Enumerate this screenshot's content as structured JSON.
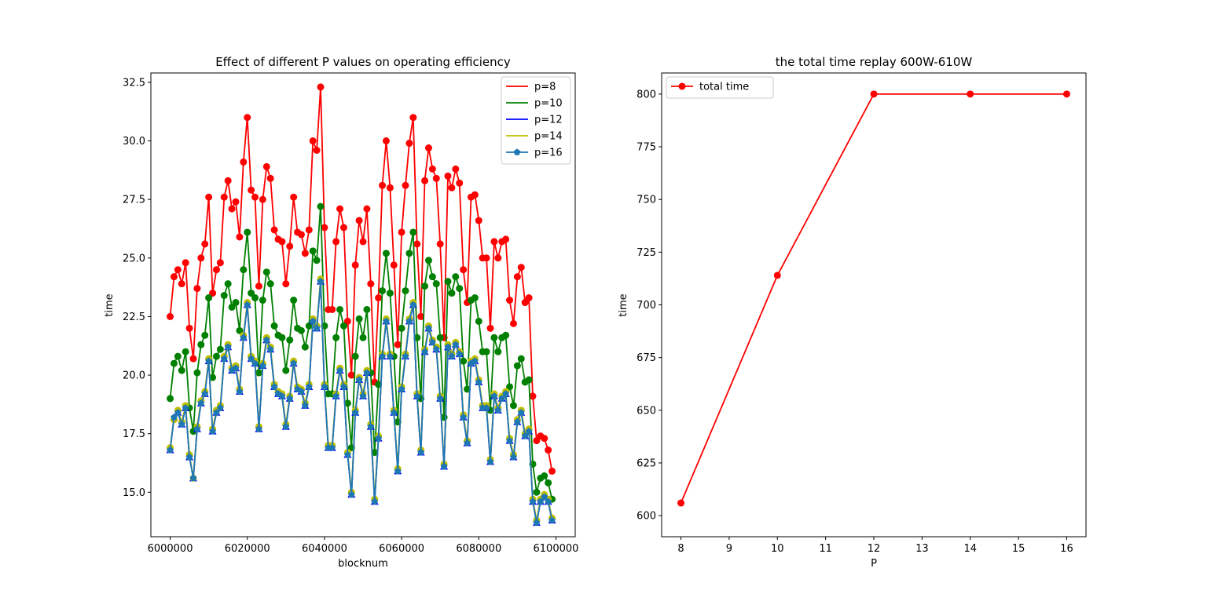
{
  "chart_data": [
    {
      "type": "line",
      "title": "Effect of different P values on operating efficiency",
      "xlabel": "blocknum",
      "ylabel": "time",
      "xlim": [
        5995000,
        6105000
      ],
      "ylim": [
        13.1,
        32.9
      ],
      "xticks": [
        6000000,
        6020000,
        6040000,
        6060000,
        6080000,
        6100000
      ],
      "xtick_labels": [
        "6000000",
        "6020000",
        "6040000",
        "6060000",
        "6080000",
        "6100000"
      ],
      "yticks": [
        15.0,
        17.5,
        20.0,
        22.5,
        25.0,
        27.5,
        30.0,
        32.5
      ],
      "ytick_labels": [
        "15.0",
        "17.5",
        "20.0",
        "22.5",
        "25.0",
        "27.5",
        "30.0",
        "32.5"
      ],
      "grid": false,
      "legend_position": "top-right",
      "x_start": 6000000,
      "x_step": 1000,
      "series": [
        {
          "name": "p=8",
          "color": "#ff0000",
          "marker": "circle",
          "values": [
            22.5,
            24.2,
            24.5,
            23.9,
            24.8,
            22.0,
            20.7,
            23.7,
            25.0,
            25.6,
            27.6,
            23.5,
            24.5,
            24.8,
            27.6,
            28.3,
            27.1,
            27.4,
            25.9,
            29.1,
            31.0,
            27.9,
            27.6,
            23.8,
            27.5,
            28.9,
            28.4,
            26.2,
            25.8,
            25.7,
            23.9,
            25.5,
            27.6,
            26.1,
            26.0,
            25.2,
            26.2,
            30.0,
            29.6,
            32.3,
            26.3,
            22.8,
            22.8,
            25.7,
            27.1,
            26.3,
            22.3,
            20.0,
            24.7,
            26.6,
            25.7,
            27.1,
            23.9,
            19.7,
            23.3,
            28.1,
            30.0,
            28.0,
            24.7,
            21.3,
            26.1,
            28.1,
            29.9,
            31.0,
            25.6,
            22.5,
            28.3,
            29.7,
            28.8,
            28.4,
            25.6,
            21.6,
            28.5,
            28.0,
            28.8,
            28.2,
            24.5,
            23.1,
            27.6,
            27.7,
            26.6,
            25.0,
            25.0,
            22.0,
            25.7,
            25.0,
            25.7,
            25.8,
            23.2,
            22.2,
            24.2,
            24.6,
            23.1,
            23.3,
            19.1,
            17.2,
            17.4,
            17.3,
            16.8,
            15.9
          ]
        },
        {
          "name": "p=10",
          "color": "#008000",
          "marker": "circle",
          "values": [
            19.0,
            20.5,
            20.8,
            20.2,
            21.0,
            18.6,
            17.6,
            20.1,
            21.3,
            21.7,
            23.3,
            19.9,
            20.8,
            21.1,
            23.4,
            23.9,
            22.9,
            23.1,
            21.9,
            24.5,
            26.1,
            23.5,
            23.3,
            20.1,
            23.2,
            24.4,
            23.9,
            22.1,
            21.7,
            21.6,
            20.2,
            21.5,
            23.2,
            22.0,
            21.9,
            21.2,
            22.1,
            25.3,
            24.9,
            27.2,
            22.1,
            19.2,
            19.2,
            21.6,
            22.8,
            22.1,
            18.8,
            16.9,
            20.8,
            22.4,
            21.6,
            22.8,
            20.1,
            16.7,
            19.6,
            23.6,
            25.2,
            23.5,
            20.8,
            18.0,
            22.0,
            23.6,
            25.2,
            26.1,
            21.6,
            19.0,
            23.8,
            24.9,
            24.2,
            23.9,
            21.6,
            18.2,
            24.0,
            23.5,
            24.2,
            23.7,
            20.6,
            19.4,
            23.2,
            23.3,
            22.3,
            21.0,
            21.0,
            18.5,
            21.6,
            21.0,
            21.6,
            21.7,
            19.5,
            18.7,
            20.4,
            20.7,
            19.7,
            19.8,
            16.2,
            15.0,
            15.6,
            15.7,
            15.4,
            14.7
          ]
        },
        {
          "name": "p=12",
          "color": "#0000ff",
          "marker": "triangle",
          "values": [
            16.8,
            18.2,
            18.4,
            17.9,
            18.6,
            16.5,
            15.6,
            17.7,
            18.8,
            19.2,
            20.6,
            17.6,
            18.4,
            18.6,
            20.7,
            21.2,
            20.2,
            20.3,
            19.3,
            21.6,
            23.0,
            20.7,
            20.5,
            17.7,
            20.4,
            21.5,
            21.1,
            19.5,
            19.2,
            19.1,
            17.8,
            19.0,
            20.5,
            19.4,
            19.3,
            18.7,
            19.5,
            22.3,
            22.0,
            24.0,
            19.5,
            16.9,
            16.9,
            19.1,
            20.2,
            19.5,
            16.6,
            14.9,
            18.4,
            19.8,
            19.1,
            20.1,
            17.8,
            14.6,
            17.3,
            20.8,
            22.3,
            20.8,
            18.4,
            15.9,
            19.4,
            20.8,
            22.3,
            23.0,
            19.1,
            16.7,
            21.0,
            22.0,
            21.4,
            21.1,
            19.0,
            16.1,
            21.2,
            20.8,
            21.3,
            20.9,
            18.2,
            17.1,
            20.5,
            20.6,
            19.7,
            18.6,
            18.6,
            16.3,
            19.1,
            18.5,
            19.0,
            19.2,
            17.2,
            16.5,
            18.0,
            18.4,
            17.4,
            17.6,
            14.6,
            13.7,
            14.6,
            14.8,
            14.6,
            13.8
          ]
        },
        {
          "name": "p=14",
          "color": "#bfbf00",
          "marker": "circle",
          "values": [
            16.9,
            18.1,
            18.5,
            18.0,
            18.7,
            16.6,
            15.6,
            17.8,
            18.9,
            19.3,
            20.7,
            17.7,
            18.5,
            18.7,
            20.8,
            21.3,
            20.3,
            20.4,
            19.4,
            21.7,
            23.1,
            20.8,
            20.6,
            17.8,
            20.5,
            21.6,
            21.2,
            19.6,
            19.3,
            19.2,
            17.9,
            19.1,
            20.6,
            19.5,
            19.4,
            18.8,
            19.6,
            22.4,
            22.1,
            24.1,
            19.6,
            17.0,
            17.0,
            19.2,
            20.3,
            19.6,
            16.7,
            15.0,
            18.5,
            19.9,
            19.2,
            20.2,
            17.9,
            14.7,
            17.4,
            20.9,
            22.4,
            20.9,
            18.5,
            16.0,
            19.5,
            20.9,
            22.4,
            23.1,
            19.2,
            16.8,
            21.1,
            22.1,
            21.5,
            21.2,
            19.1,
            16.2,
            21.3,
            20.9,
            21.4,
            21.0,
            18.3,
            17.2,
            20.6,
            20.7,
            19.8,
            18.7,
            18.7,
            16.4,
            19.2,
            18.6,
            19.1,
            19.3,
            17.3,
            16.6,
            18.1,
            18.5,
            17.5,
            17.7,
            14.7,
            13.8,
            14.7,
            14.9,
            14.7,
            13.9
          ]
        },
        {
          "name": "p=16",
          "color": "#1f77b4",
          "marker": "pentagon",
          "values": [
            16.8,
            18.2,
            18.4,
            17.9,
            18.6,
            16.5,
            15.6,
            17.7,
            18.8,
            19.2,
            20.6,
            17.6,
            18.4,
            18.6,
            20.7,
            21.2,
            20.2,
            20.3,
            19.3,
            21.6,
            23.0,
            20.7,
            20.5,
            17.7,
            20.4,
            21.5,
            21.1,
            19.5,
            19.2,
            19.1,
            17.8,
            19.0,
            20.5,
            19.4,
            19.3,
            18.7,
            19.5,
            22.3,
            22.0,
            24.0,
            19.5,
            16.9,
            16.9,
            19.1,
            20.2,
            19.5,
            16.6,
            14.9,
            18.4,
            19.8,
            19.1,
            20.1,
            17.8,
            14.6,
            17.3,
            20.8,
            22.3,
            20.8,
            18.4,
            15.9,
            19.4,
            20.8,
            22.3,
            23.0,
            19.1,
            16.7,
            21.0,
            22.0,
            21.4,
            21.1,
            19.0,
            16.1,
            21.2,
            20.8,
            21.3,
            20.9,
            18.2,
            17.1,
            20.5,
            20.6,
            19.7,
            18.6,
            18.6,
            16.3,
            19.1,
            18.5,
            19.0,
            19.2,
            17.2,
            16.5,
            18.0,
            18.4,
            17.4,
            17.6,
            14.6,
            13.7,
            14.6,
            14.8,
            14.6,
            13.8
          ]
        }
      ]
    },
    {
      "type": "line",
      "title": "the total time replay 600W-610W",
      "xlabel": "P",
      "ylabel": "time",
      "xlim": [
        7.6,
        16.4
      ],
      "ylim": [
        590,
        810
      ],
      "xticks": [
        8,
        9,
        10,
        11,
        12,
        13,
        14,
        15,
        16
      ],
      "xtick_labels": [
        "8",
        "9",
        "10",
        "11",
        "12",
        "13",
        "14",
        "15",
        "16"
      ],
      "yticks": [
        600,
        625,
        650,
        675,
        700,
        725,
        750,
        775,
        800
      ],
      "ytick_labels": [
        "600",
        "625",
        "650",
        "675",
        "700",
        "725",
        "750",
        "775",
        "800"
      ],
      "grid": false,
      "legend_position": "top-left",
      "series": [
        {
          "name": "total time",
          "color": "#ff0000",
          "marker": "circle",
          "x": [
            8,
            10,
            12,
            14,
            16
          ],
          "values": [
            606,
            714,
            800,
            800,
            800
          ]
        }
      ]
    }
  ]
}
